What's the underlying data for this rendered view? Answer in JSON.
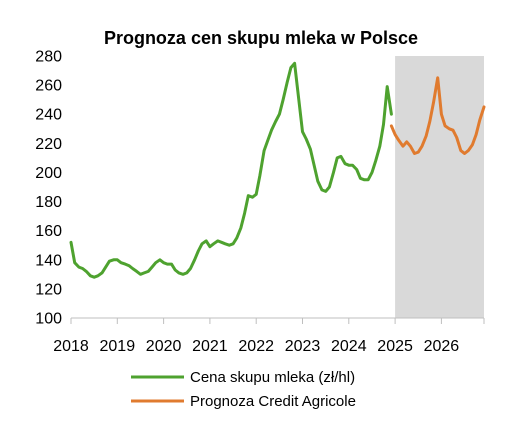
{
  "chart_data": {
    "type": "line",
    "title": "Prognoza cen skupu mleka w Polsce",
    "xlabel": "",
    "ylabel": "",
    "xlim": [
      2018.0,
      2026.92
    ],
    "ylim": [
      100,
      280
    ],
    "yticks": [
      100,
      120,
      140,
      160,
      180,
      200,
      220,
      240,
      260,
      280
    ],
    "xtick_labels": [
      "2018",
      "2019",
      "2020",
      "2021",
      "2022",
      "2023",
      "2024",
      "2025",
      "2026"
    ],
    "grid": false,
    "legend_position": "bottom",
    "forecast_region": {
      "x_start": 2025.0,
      "x_end": 2026.92,
      "color": "#d9d9d9"
    },
    "series": [
      {
        "name": "Cena skupu mleka (zł/hl)",
        "color": "#4ea22f",
        "points": [
          [
            2018.0,
            152
          ],
          [
            2018.08,
            138
          ],
          [
            2018.17,
            135
          ],
          [
            2018.25,
            134
          ],
          [
            2018.33,
            132
          ],
          [
            2018.42,
            129
          ],
          [
            2018.5,
            128
          ],
          [
            2018.58,
            129
          ],
          [
            2018.67,
            131
          ],
          [
            2018.75,
            135
          ],
          [
            2018.83,
            139
          ],
          [
            2018.92,
            140
          ],
          [
            2019.0,
            140
          ],
          [
            2019.08,
            138
          ],
          [
            2019.17,
            137
          ],
          [
            2019.25,
            136
          ],
          [
            2019.33,
            134
          ],
          [
            2019.42,
            132
          ],
          [
            2019.5,
            130
          ],
          [
            2019.58,
            131
          ],
          [
            2019.67,
            132
          ],
          [
            2019.75,
            135
          ],
          [
            2019.83,
            138
          ],
          [
            2019.92,
            140
          ],
          [
            2020.0,
            138
          ],
          [
            2020.08,
            137
          ],
          [
            2020.17,
            137
          ],
          [
            2020.25,
            133
          ],
          [
            2020.33,
            131
          ],
          [
            2020.42,
            130
          ],
          [
            2020.5,
            131
          ],
          [
            2020.58,
            134
          ],
          [
            2020.67,
            140
          ],
          [
            2020.75,
            146
          ],
          [
            2020.83,
            151
          ],
          [
            2020.92,
            153
          ],
          [
            2021.0,
            149
          ],
          [
            2021.08,
            151
          ],
          [
            2021.17,
            153
          ],
          [
            2021.25,
            152
          ],
          [
            2021.33,
            151
          ],
          [
            2021.42,
            150
          ],
          [
            2021.5,
            151
          ],
          [
            2021.58,
            155
          ],
          [
            2021.67,
            162
          ],
          [
            2021.75,
            172
          ],
          [
            2021.83,
            184
          ],
          [
            2021.92,
            183
          ],
          [
            2022.0,
            185
          ],
          [
            2022.08,
            198
          ],
          [
            2022.17,
            215
          ],
          [
            2022.25,
            222
          ],
          [
            2022.33,
            229
          ],
          [
            2022.42,
            235
          ],
          [
            2022.5,
            240
          ],
          [
            2022.58,
            250
          ],
          [
            2022.67,
            262
          ],
          [
            2022.75,
            272
          ],
          [
            2022.83,
            275
          ],
          [
            2022.92,
            250
          ],
          [
            2023.0,
            228
          ],
          [
            2023.08,
            223
          ],
          [
            2023.17,
            216
          ],
          [
            2023.25,
            205
          ],
          [
            2023.33,
            194
          ],
          [
            2023.42,
            188
          ],
          [
            2023.5,
            187
          ],
          [
            2023.58,
            190
          ],
          [
            2023.67,
            200
          ],
          [
            2023.75,
            210
          ],
          [
            2023.83,
            211
          ],
          [
            2023.92,
            206
          ],
          [
            2024.0,
            205
          ],
          [
            2024.08,
            205
          ],
          [
            2024.17,
            202
          ],
          [
            2024.25,
            196
          ],
          [
            2024.33,
            195
          ],
          [
            2024.42,
            195
          ],
          [
            2024.5,
            200
          ],
          [
            2024.58,
            208
          ],
          [
            2024.67,
            218
          ],
          [
            2024.75,
            233
          ],
          [
            2024.83,
            259
          ],
          [
            2024.92,
            240
          ]
        ]
      },
      {
        "name": "Prognoza Credit Agricole",
        "color": "#e07b2f",
        "points": [
          [
            2024.92,
            232
          ],
          [
            2025.0,
            226
          ],
          [
            2025.08,
            222
          ],
          [
            2025.17,
            218
          ],
          [
            2025.25,
            221
          ],
          [
            2025.33,
            218
          ],
          [
            2025.42,
            213
          ],
          [
            2025.5,
            214
          ],
          [
            2025.58,
            218
          ],
          [
            2025.67,
            225
          ],
          [
            2025.75,
            235
          ],
          [
            2025.83,
            248
          ],
          [
            2025.92,
            265
          ],
          [
            2026.0,
            240
          ],
          [
            2026.08,
            232
          ],
          [
            2026.17,
            230
          ],
          [
            2026.25,
            229
          ],
          [
            2026.33,
            224
          ],
          [
            2026.42,
            215
          ],
          [
            2026.5,
            213
          ],
          [
            2026.58,
            215
          ],
          [
            2026.67,
            219
          ],
          [
            2026.75,
            226
          ],
          [
            2026.83,
            236
          ],
          [
            2026.92,
            245
          ]
        ]
      }
    ]
  }
}
